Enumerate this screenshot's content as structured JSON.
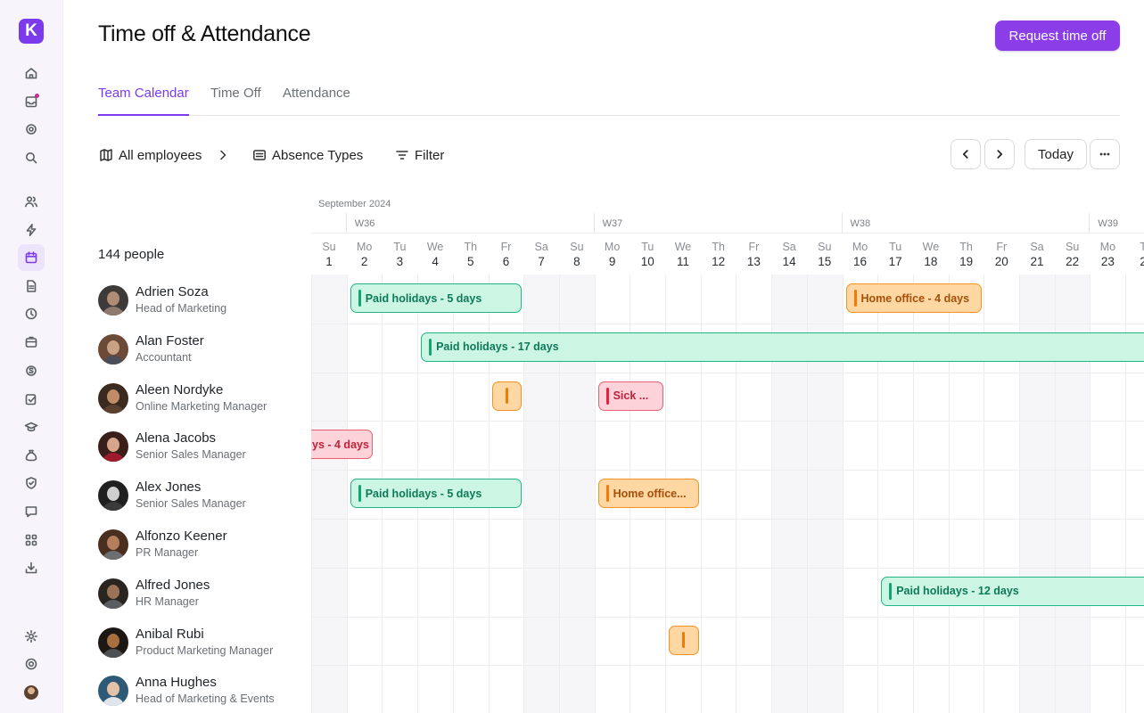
{
  "app": {
    "logo_letter": "K"
  },
  "header": {
    "title": "Time off & Attendance",
    "request_button": "Request time off"
  },
  "tabs": [
    {
      "label": "Team Calendar",
      "active": true
    },
    {
      "label": "Time Off",
      "active": false
    },
    {
      "label": "Attendance",
      "active": false
    }
  ],
  "toolbar": {
    "employees_label": "All employees",
    "absence_types_label": "Absence Types",
    "filter_label": "Filter",
    "today_label": "Today"
  },
  "people_count": "144 people",
  "calendar": {
    "month_label": "September 2024",
    "weeks": [
      "W36",
      "W37",
      "W38",
      "W39"
    ],
    "days": [
      {
        "n": "Su",
        "d": "1"
      },
      {
        "n": "Mo",
        "d": "2"
      },
      {
        "n": "Tu",
        "d": "3"
      },
      {
        "n": "We",
        "d": "4"
      },
      {
        "n": "Th",
        "d": "5"
      },
      {
        "n": "Fr",
        "d": "6"
      },
      {
        "n": "Sa",
        "d": "7"
      },
      {
        "n": "Su",
        "d": "8"
      },
      {
        "n": "Mo",
        "d": "9"
      },
      {
        "n": "Tu",
        "d": "10"
      },
      {
        "n": "We",
        "d": "11"
      },
      {
        "n": "Th",
        "d": "12"
      },
      {
        "n": "Fr",
        "d": "13"
      },
      {
        "n": "Sa",
        "d": "14"
      },
      {
        "n": "Su",
        "d": "15"
      },
      {
        "n": "Mo",
        "d": "16"
      },
      {
        "n": "Tu",
        "d": "17"
      },
      {
        "n": "We",
        "d": "18"
      },
      {
        "n": "Th",
        "d": "19"
      },
      {
        "n": "Fr",
        "d": "20"
      },
      {
        "n": "Sa",
        "d": "21"
      },
      {
        "n": "Su",
        "d": "22"
      },
      {
        "n": "Mo",
        "d": "23"
      },
      {
        "n": "T",
        "d": "2"
      }
    ]
  },
  "people": [
    {
      "name": "Adrien Soza",
      "role": "Head of Marketing"
    },
    {
      "name": "Alan Foster",
      "role": "Accountant"
    },
    {
      "name": "Aleen Nordyke",
      "role": "Online Marketing Manager"
    },
    {
      "name": "Alena Jacobs",
      "role": "Senior Sales Manager"
    },
    {
      "name": "Alex Jones",
      "role": "Senior Sales Manager"
    },
    {
      "name": "Alfonzo Keener",
      "role": "PR Manager"
    },
    {
      "name": "Alfred Jones",
      "role": "HR Manager"
    },
    {
      "name": "Anibal Rubi",
      "role": "Product Marketing Manager"
    },
    {
      "name": "Anna Hughes",
      "role": "Head of Marketing & Events"
    }
  ],
  "events": [
    {
      "row": 0,
      "type": "paid",
      "label": "Paid holidays - 5 days",
      "start_day": 2,
      "end_day": 6
    },
    {
      "row": 0,
      "type": "home",
      "label": "Home office - 4 days",
      "start_day": 16,
      "end_day": 19
    },
    {
      "row": 1,
      "type": "paid",
      "label": "Paid holidays - 17 days",
      "start_day": 4,
      "end_day": 24
    },
    {
      "row": 2,
      "type": "home",
      "label": "",
      "start_day": 6,
      "end_day": 6
    },
    {
      "row": 2,
      "type": "sick",
      "label": "Sick ...",
      "start_day": 9,
      "end_day": 10
    },
    {
      "row": 3,
      "type": "sick",
      "label": "ys - 4 days",
      "start_day": 1,
      "end_day": 2
    },
    {
      "row": 4,
      "type": "paid",
      "label": "Paid holidays - 5 days",
      "start_day": 2,
      "end_day": 6
    },
    {
      "row": 4,
      "type": "home",
      "label": "Home office...",
      "start_day": 9,
      "end_day": 11
    },
    {
      "row": 6,
      "type": "paid",
      "label": "Paid holidays - 12 days",
      "start_day": 17,
      "end_day": 24
    },
    {
      "row": 7,
      "type": "home",
      "label": "",
      "start_day": 11,
      "end_day": 11
    }
  ],
  "colors": {
    "accent": "#7c3aed",
    "paid": "#13a474",
    "home": "#f07b08",
    "sick": "#e51f45"
  }
}
